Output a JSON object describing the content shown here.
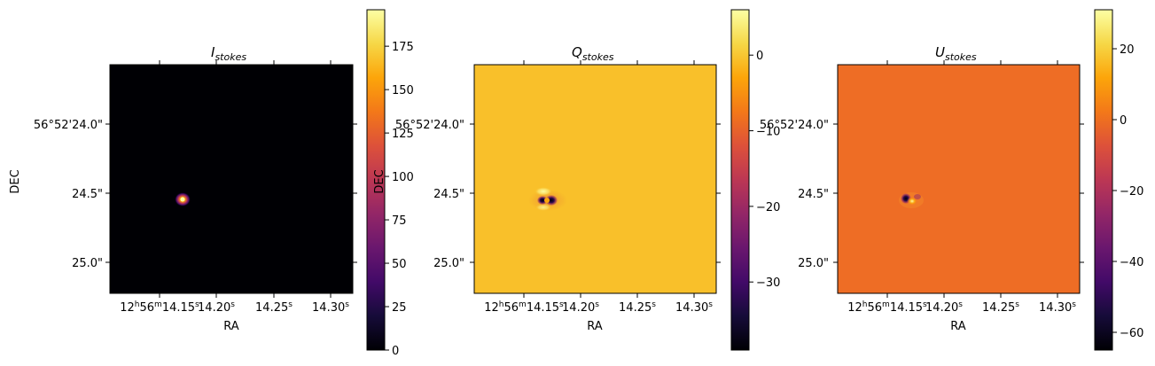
{
  "chart_data": [
    {
      "type": "heatmap",
      "title": "I",
      "title_subscript": "stokes",
      "xlabel": "RA",
      "ylabel": "DEC",
      "x_ticks": [
        {
          "h": "12",
          "m": "56",
          "s": "14.15",
          "label": "12h56m14.15s"
        },
        {
          "s": "14.20",
          "label": "14.20s"
        },
        {
          "s": "14.25",
          "label": "14.25s"
        },
        {
          "s": "14.30",
          "label": "14.30s"
        }
      ],
      "y_ticks": [
        "56°52'24.0\"",
        "24.5\"",
        "25.0\""
      ],
      "background": "#000004",
      "colormap": "inferno",
      "colorbar": {
        "min": 0,
        "max": 196,
        "ticks": [
          "0",
          "25",
          "50",
          "75",
          "100",
          "125",
          "150",
          "175"
        ]
      },
      "features": [
        {
          "kind": "source",
          "peak": 196
        }
      ]
    },
    {
      "type": "heatmap",
      "title": "Q",
      "title_subscript": "stokes",
      "xlabel": "RA",
      "ylabel": "DEC",
      "x_ticks": [
        {
          "h": "12",
          "m": "56",
          "s": "14.15",
          "label": "12h56m14.15s"
        },
        {
          "s": "14.20",
          "label": "14.20s"
        },
        {
          "s": "14.25",
          "label": "14.25s"
        },
        {
          "s": "14.30",
          "label": "14.30s"
        }
      ],
      "y_ticks": [
        "56°52'24.0\"",
        "24.5\"",
        "25.0\""
      ],
      "background": "#f9c02a",
      "colormap": "inferno",
      "colorbar": {
        "min": -39,
        "max": 6,
        "ticks": [
          "0",
          "−10",
          "−20",
          "−30"
        ]
      },
      "features": [
        {
          "kind": "negative",
          "value": -39
        },
        {
          "kind": "positive",
          "value": 6
        }
      ]
    },
    {
      "type": "heatmap",
      "title": "U",
      "title_subscript": "stokes",
      "xlabel": "RA",
      "ylabel": "",
      "x_ticks": [
        {
          "h": "12",
          "m": "56",
          "s": "14.15",
          "label": "12h56m14.15s"
        },
        {
          "s": "14.20",
          "label": "14.20s"
        },
        {
          "s": "14.25",
          "label": "14.25s"
        },
        {
          "s": "14.30",
          "label": "14.30s"
        }
      ],
      "y_ticks": [
        "56°52'24.0\"",
        "24.5\"",
        "25.0\""
      ],
      "background": "#ee6d25",
      "colormap": "inferno",
      "colorbar": {
        "min": -65,
        "max": 31,
        "ticks": [
          "20",
          "0",
          "−20",
          "−40",
          "−60"
        ]
      },
      "features": [
        {
          "kind": "negative",
          "value": -65
        },
        {
          "kind": "positive",
          "value": 31
        }
      ]
    }
  ]
}
